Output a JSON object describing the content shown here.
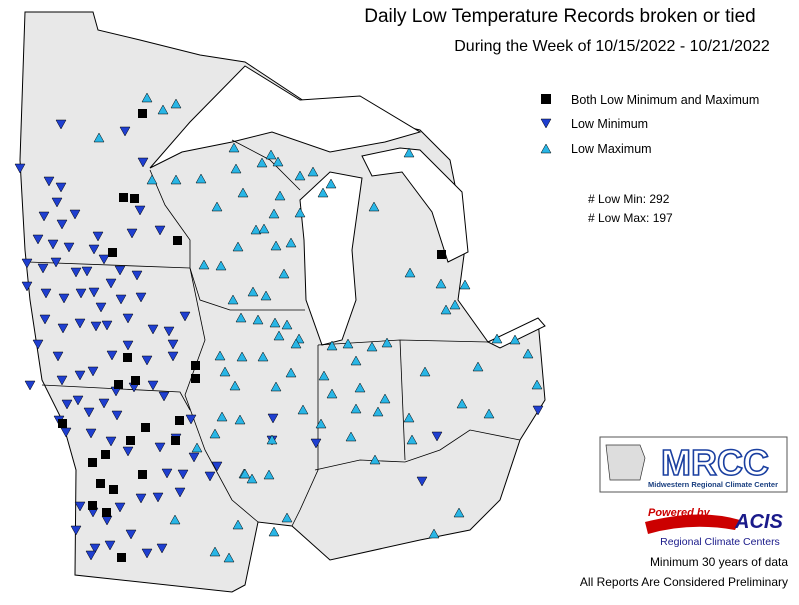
{
  "header": {
    "title": "Daily Low Temperature Records broken or tied",
    "subtitle": "During the Week of 10/15/2022 - 10/21/2022"
  },
  "legend": {
    "items": [
      "Both Low Minimum and Maximum",
      "Low Minimum",
      "Low Maximum"
    ]
  },
  "counts": [
    "# Low Min: 292",
    "# Low Max: 197"
  ],
  "logos": {
    "mrcc": "MRCC",
    "mrcc_name": "Midwestern Regional Climate Center",
    "powered_by": "Powered by",
    "acis": "ACIS",
    "acis_name": "Regional Climate Centers"
  },
  "footer": [
    "Minimum 30 years of data",
    "All Reports Are Considered Preliminary"
  ]
}
